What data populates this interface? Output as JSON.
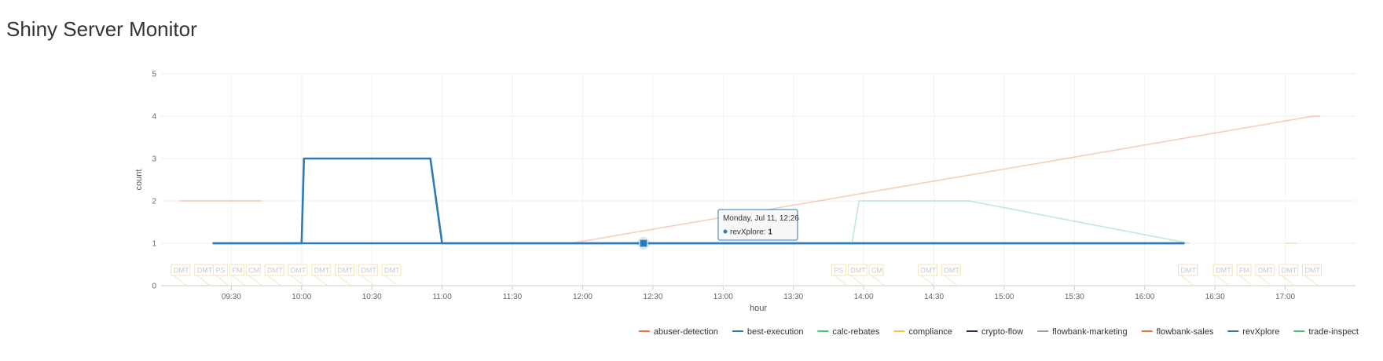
{
  "app": {
    "title": "Shiny Server Monitor"
  },
  "chart_data": {
    "type": "line",
    "xlabel": "hour",
    "ylabel": "count",
    "ylim": [
      0,
      5
    ],
    "yticks": [
      0,
      1,
      2,
      3,
      4,
      5
    ],
    "xlim": [
      "09:00",
      "17:30"
    ],
    "xticks": [
      "09:30",
      "10:00",
      "10:30",
      "11:00",
      "11:30",
      "12:00",
      "12:30",
      "13:00",
      "13:30",
      "14:00",
      "14:30",
      "15:00",
      "15:30",
      "16:00",
      "16:30",
      "17:00"
    ],
    "grid": true,
    "legend_position": "bottom-right",
    "series": [
      {
        "name": "abuser-detection",
        "color": "#e8743b",
        "dim": true,
        "points": []
      },
      {
        "name": "best-execution",
        "color": "#2b7bba",
        "dim": false,
        "points": [
          [
            "09:22",
            1
          ],
          [
            "10:00",
            1
          ],
          [
            "10:01",
            3
          ],
          [
            "10:55",
            3
          ],
          [
            "11:00",
            1
          ],
          [
            "16:17",
            1
          ]
        ]
      },
      {
        "name": "calc-rebates",
        "color": "#4cc27a",
        "dim": true,
        "points": []
      },
      {
        "name": "compliance",
        "color": "#f5c342",
        "dim": true,
        "points": [
          [
            "17:00",
            1
          ],
          [
            "17:05",
            1
          ]
        ]
      },
      {
        "name": "crypto-flow",
        "color": "#2c2c54",
        "dim": true,
        "points": []
      },
      {
        "name": "flowbank-marketing",
        "color": "#9aa0a6",
        "dim": true,
        "points": [
          [
            "10:00",
            1
          ],
          [
            "10:15",
            1
          ]
        ]
      },
      {
        "name": "flowbank-sales",
        "color": "#e8743b",
        "dim": true,
        "segments": [
          [
            [
              "09:08",
              2
            ],
            [
              "09:43",
              2
            ]
          ],
          [
            [
              "10:20",
              1
            ],
            [
              "11:00",
              1
            ],
            [
              "11:55",
              1
            ],
            [
              "17:12",
              4
            ],
            [
              "17:15",
              4
            ]
          ]
        ]
      },
      {
        "name": "revXplore",
        "color": "#2b7bba",
        "dim": false,
        "points": [
          [
            "09:22",
            1
          ],
          [
            "12:26",
            1
          ],
          [
            "16:17",
            1
          ]
        ]
      },
      {
        "name": "trade-inspect",
        "color": "#4cc27a",
        "dim": true,
        "points": [
          [
            "13:55",
            1
          ],
          [
            "13:58",
            2
          ],
          [
            "14:45",
            2
          ],
          [
            "16:19",
            1
          ]
        ]
      }
    ],
    "flags": [
      {
        "x": "09:05",
        "text": "DMT"
      },
      {
        "x": "09:15",
        "text": "DMT"
      },
      {
        "x": "09:23",
        "text": "PS"
      },
      {
        "x": "09:30",
        "text": "FM"
      },
      {
        "x": "09:37",
        "text": "CM"
      },
      {
        "x": "09:45",
        "text": "DMT"
      },
      {
        "x": "09:55",
        "text": "DMT"
      },
      {
        "x": "10:05",
        "text": "DMT"
      },
      {
        "x": "10:15",
        "text": "DMT"
      },
      {
        "x": "10:25",
        "text": "DMT"
      },
      {
        "x": "10:35",
        "text": "DMT"
      },
      {
        "x": "13:47",
        "text": "PS"
      },
      {
        "x": "13:54",
        "text": "DMT"
      },
      {
        "x": "14:03",
        "text": "CM"
      },
      {
        "x": "14:24",
        "text": "DMT"
      },
      {
        "x": "14:34",
        "text": "DMT"
      },
      {
        "x": "16:15",
        "text": "DMT"
      },
      {
        "x": "16:30",
        "text": "DMT"
      },
      {
        "x": "16:40",
        "text": "FM"
      },
      {
        "x": "16:48",
        "text": "DMT"
      },
      {
        "x": "16:58",
        "text": "DMT"
      },
      {
        "x": "17:08",
        "text": "DMT"
      }
    ],
    "tooltip": {
      "x": "12:26",
      "y": 1,
      "date": "Monday, Jul 11, 12:26",
      "series": "revXplore",
      "value": "1",
      "color": "#2b7bba"
    }
  }
}
